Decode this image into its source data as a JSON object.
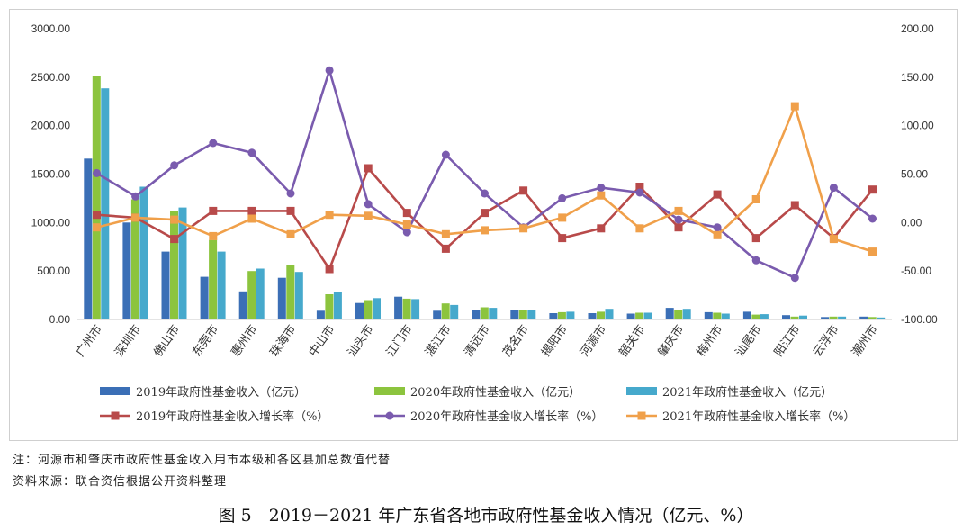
{
  "chart_data": {
    "type": "bar",
    "categories": [
      "广州市",
      "深圳市",
      "佛山市",
      "东莞市",
      "惠州市",
      "珠海市",
      "中山市",
      "汕头市",
      "江门市",
      "湛江市",
      "清远市",
      "茂名市",
      "揭阳市",
      "河源市",
      "韶关市",
      "肇庆市",
      "梅州市",
      "汕尾市",
      "阳江市",
      "云浮市",
      "潮州市"
    ],
    "left_axis": {
      "min": 0,
      "max": 3000,
      "step": 500,
      "tick_labels": [
        "0.00",
        "500.00",
        "1000.00",
        "1500.00",
        "2000.00",
        "2500.00",
        "3000.00"
      ]
    },
    "right_axis": {
      "min": -100,
      "max": 200,
      "step": 50,
      "tick_labels": [
        "-100.00",
        "-50.00",
        "0.00",
        "50.00",
        "100.00",
        "150.00",
        "200.00"
      ]
    },
    "bar_series": [
      {
        "name": "2019年政府性基金收入（亿元）",
        "color": "#3B6FB6",
        "values": [
          1660,
          1000,
          700,
          440,
          290,
          430,
          90,
          170,
          235,
          90,
          95,
          100,
          65,
          65,
          60,
          120,
          75,
          80,
          45,
          25,
          30
        ]
      },
      {
        "name": "2020年政府性基金收入（亿元）",
        "color": "#8CC43E",
        "values": [
          2510,
          1240,
          1120,
          820,
          500,
          560,
          260,
          200,
          215,
          165,
          125,
          95,
          75,
          80,
          70,
          95,
          70,
          50,
          30,
          30,
          25
        ]
      },
      {
        "name": "2021年政府性基金收入（亿元）",
        "color": "#46A9CC",
        "values": [
          2385,
          1370,
          1155,
          700,
          525,
          490,
          280,
          220,
          210,
          150,
          120,
          95,
          80,
          110,
          70,
          110,
          60,
          55,
          40,
          30,
          20
        ]
      }
    ],
    "line_series": [
      {
        "name": "2019年政府性基金收入增长率（%）",
        "color": "#B84A4A",
        "values": [
          8,
          5,
          -17,
          12,
          12,
          12,
          -48,
          56,
          10,
          -27,
          10,
          33,
          -16,
          -6,
          37,
          -5,
          29,
          -16,
          18,
          -16,
          34
        ]
      },
      {
        "name": "2020年政府性基金收入增长率（%）",
        "color": "#7A5BAE",
        "values": [
          51,
          27,
          59,
          82,
          72,
          30,
          157,
          19,
          -10,
          70,
          30,
          -5,
          25,
          36,
          31,
          3,
          -5,
          -39,
          -57,
          36,
          4
        ]
      },
      {
        "name": "2021年政府性基金收入增长率（%）",
        "color": "#F0A04A",
        "values": [
          -5,
          5,
          3,
          -14,
          4,
          -12,
          8,
          7,
          -2,
          -12,
          -8,
          -6,
          5,
          28,
          -6,
          12,
          -13,
          24,
          120,
          -17,
          -30
        ]
      }
    ]
  },
  "notes": {
    "note1": "注：河源市和肇庆市政府性基金收入用市本级和各区县加总数值代替",
    "note2": "资料来源：联合资信根据公开资料整理"
  },
  "caption": "图 5　2019－2021 年广东省各地市政府性基金收入情况（亿元、%）"
}
